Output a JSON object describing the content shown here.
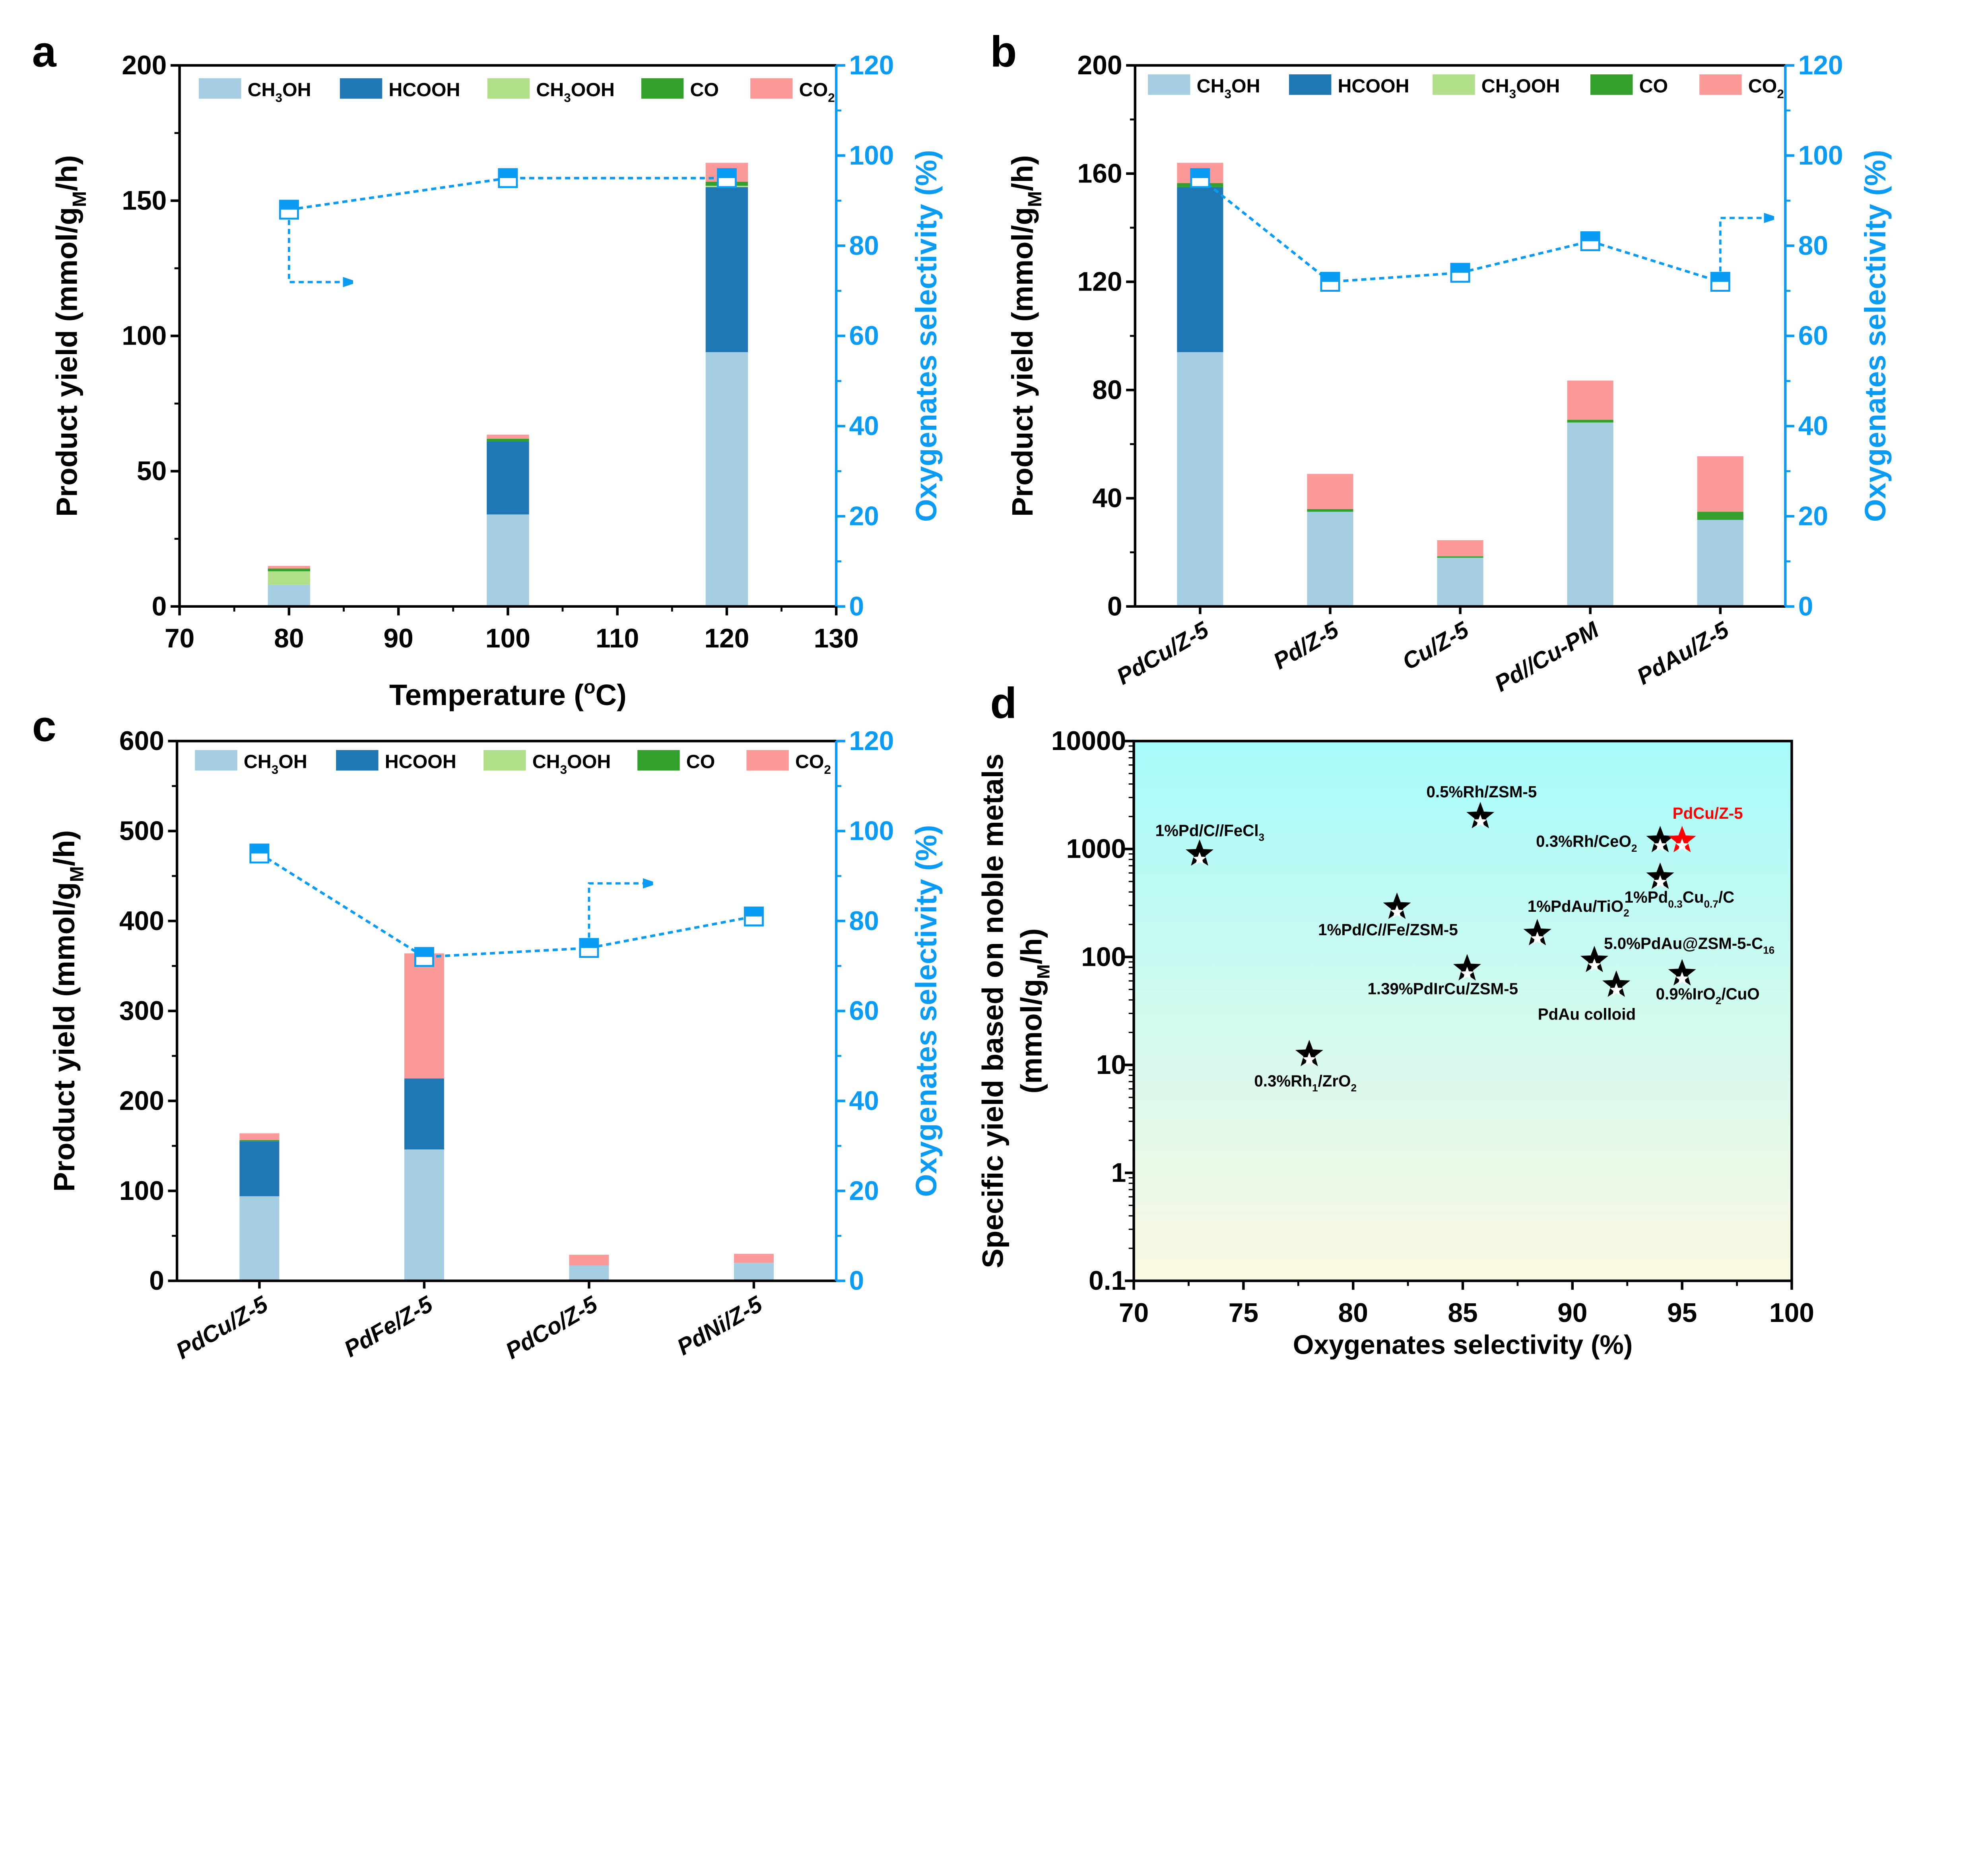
{
  "colors": {
    "CH3OH": "#a6cee3",
    "HCOOH": "#1f78b4",
    "CH3OOH": "#b2df8a",
    "CO": "#33a02c",
    "CO2": "#fb9a99",
    "selectivity": "#0a9cf5",
    "highlight": "#ff0000",
    "gradient_top": "#a6fbfb",
    "gradient_bottom": "#fbf8e2"
  },
  "legend": [
    {
      "key": "CH3OH",
      "parts": [
        "CH",
        "3",
        "OH"
      ]
    },
    {
      "key": "HCOOH",
      "parts": [
        "HCOOH"
      ]
    },
    {
      "key": "CH3OOH",
      "parts": [
        "CH",
        "3",
        "OOH"
      ]
    },
    {
      "key": "CO",
      "parts": [
        "CO"
      ]
    },
    {
      "key": "CO2",
      "parts": [
        "CO",
        "2"
      ]
    }
  ],
  "chart_data": [
    {
      "panel": "a",
      "type": "bar",
      "stacked": true,
      "x_type": "numeric",
      "x": [
        80,
        100,
        120
      ],
      "xlim": [
        70,
        130
      ],
      "xticks": [
        70,
        80,
        90,
        100,
        110,
        120,
        130
      ],
      "xlabel": {
        "parts": [
          "Temperature (",
          "o",
          "C)"
        ],
        "script": "sup"
      },
      "ylabel": {
        "parts": [
          "Product yield (mmol/g",
          "M",
          "/h)"
        ],
        "script": "sub"
      },
      "ylim": [
        0,
        200
      ],
      "yticks": [
        0,
        50,
        100,
        150,
        200
      ],
      "y2label": "Oxygenates selectivity (%)",
      "y2lim": [
        0,
        120
      ],
      "y2ticks": [
        0,
        20,
        40,
        60,
        80,
        100,
        120
      ],
      "series": [
        {
          "key": "CH3OH",
          "values": [
            8,
            34,
            94
          ]
        },
        {
          "key": "HCOOH",
          "values": [
            0,
            27,
            61
          ]
        },
        {
          "key": "CH3OOH",
          "values": [
            5,
            0,
            0.5
          ]
        },
        {
          "key": "CO",
          "values": [
            1,
            1,
            1.5
          ]
        },
        {
          "key": "CO2",
          "values": [
            1,
            1.5,
            7
          ]
        }
      ],
      "selectivity": [
        88,
        95,
        95
      ],
      "arrow_direction": "right",
      "grid": false,
      "legend_position": "top"
    },
    {
      "panel": "b",
      "type": "bar",
      "stacked": true,
      "x_type": "category",
      "categories": [
        "PdCu/Z-5",
        "Pd/Z-5",
        "Cu/Z-5",
        "Pd//Cu-PM",
        "PdAu/Z-5"
      ],
      "ylabel": {
        "parts": [
          "Product yield (mmol/g",
          "M",
          "/h)"
        ],
        "script": "sub"
      },
      "ylim": [
        0,
        200
      ],
      "yticks": [
        0,
        40,
        80,
        120,
        160,
        200
      ],
      "y2label": "Oxygenates selectivity (%)",
      "y2lim": [
        0,
        120
      ],
      "y2ticks": [
        0,
        20,
        40,
        60,
        80,
        100,
        120
      ],
      "series": [
        {
          "key": "CH3OH",
          "values": [
            94,
            35,
            18,
            68,
            32
          ]
        },
        {
          "key": "HCOOH",
          "values": [
            61,
            0,
            0,
            0,
            0
          ]
        },
        {
          "key": "CH3OOH",
          "values": [
            0,
            0,
            0,
            0,
            0
          ]
        },
        {
          "key": "CO",
          "values": [
            1.5,
            1,
            0.5,
            1,
            3
          ]
        },
        {
          "key": "CO2",
          "values": [
            7.5,
            13,
            6,
            14.5,
            20.5
          ]
        }
      ],
      "selectivity": [
        95,
        72,
        74,
        81,
        72
      ],
      "arrow_direction": "right",
      "grid": false,
      "legend_position": "top"
    },
    {
      "panel": "c",
      "type": "bar",
      "stacked": true,
      "x_type": "category",
      "categories": [
        "PdCu/Z-5",
        "PdFe/Z-5",
        "PdCo/Z-5",
        "PdNi/Z-5"
      ],
      "ylabel": {
        "parts": [
          "Product yield (mmol/g",
          "M",
          "/h)"
        ],
        "script": "sub"
      },
      "ylim": [
        0,
        600
      ],
      "yticks": [
        0,
        100,
        200,
        300,
        400,
        500,
        600
      ],
      "y2label": "Oxygenates selectivity (%)",
      "y2lim": [
        0,
        120
      ],
      "y2ticks": [
        0,
        20,
        40,
        60,
        80,
        100,
        120
      ],
      "series": [
        {
          "key": "CH3OH",
          "values": [
            94,
            146,
            17,
            20
          ]
        },
        {
          "key": "HCOOH",
          "values": [
            61,
            79,
            0,
            0
          ]
        },
        {
          "key": "CH3OOH",
          "values": [
            0,
            0,
            0,
            0
          ]
        },
        {
          "key": "CO",
          "values": [
            1.5,
            0,
            0,
            0
          ]
        },
        {
          "key": "CO2",
          "values": [
            7.5,
            139,
            12,
            10
          ]
        }
      ],
      "selectivity": [
        95,
        72,
        74,
        81
      ],
      "arrow_direction": "right",
      "grid": false,
      "legend_position": "top"
    },
    {
      "panel": "d",
      "type": "scatter",
      "xlabel": "Oxygenates selectivity (%)",
      "ylabel_lines": [
        {
          "parts": [
            "Specific yield based on noble metals"
          ]
        },
        {
          "parts": [
            "(mmol/g",
            "M",
            "/h)"
          ]
        }
      ],
      "xlim": [
        70,
        100
      ],
      "xticks": [
        70,
        75,
        80,
        85,
        90,
        95,
        100
      ],
      "ylim": [
        0.1,
        10000
      ],
      "yscale": "log",
      "yticks": [
        "0.1",
        "1",
        "10",
        "100",
        "1000",
        "10000"
      ],
      "background": "gradient",
      "points": [
        {
          "label": [
            "1%Pd/C//FeCl",
            "3"
          ],
          "x": 73,
          "y": 900
        },
        {
          "label": [
            "0.5%Rh/ZSM-5"
          ],
          "x": 85.8,
          "y": 2000
        },
        {
          "label": [
            "0.3%Rh/CeO",
            "2"
          ],
          "x": 94,
          "y": 1200
        },
        {
          "label": [
            "PdCu/Z-5"
          ],
          "x": 95,
          "y": 1200,
          "highlight": true
        },
        {
          "label": [
            "1%Pd",
            "0.3",
            "Cu",
            "0.7",
            "/C"
          ],
          "x": 94,
          "y": 550
        },
        {
          "label": [
            "1%Pd/C//Fe/ZSM-5"
          ],
          "x": 82,
          "y": 290
        },
        {
          "label": [
            "1%PdAu/TiO",
            "2"
          ],
          "x": 88.4,
          "y": 165
        },
        {
          "label": [
            "5.0%PdAu@ZSM-5-C",
            "16"
          ],
          "x": 91,
          "y": 93
        },
        {
          "label": [
            "1.39%PdIrCu/ZSM-5"
          ],
          "x": 85.2,
          "y": 78
        },
        {
          "label": [
            "PdAu colloid"
          ],
          "x": 92,
          "y": 55
        },
        {
          "label": [
            "0.9%IrO",
            "2",
            "/CuO"
          ],
          "x": 95,
          "y": 70
        },
        {
          "label": [
            "0.3%Rh",
            "1",
            "/ZrO",
            "2"
          ],
          "x": 78,
          "y": 12.5
        }
      ]
    }
  ]
}
